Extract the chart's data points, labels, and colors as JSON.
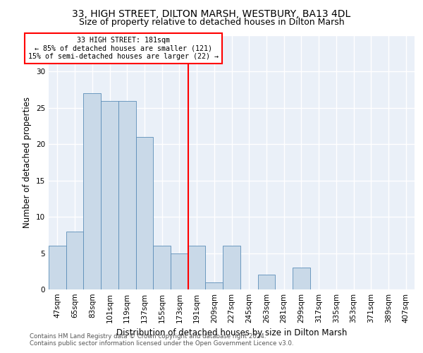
{
  "title1": "33, HIGH STREET, DILTON MARSH, WESTBURY, BA13 4DL",
  "title2": "Size of property relative to detached houses in Dilton Marsh",
  "xlabel": "Distribution of detached houses by size in Dilton Marsh",
  "ylabel": "Number of detached properties",
  "footer1": "Contains HM Land Registry data © Crown copyright and database right 2024.",
  "footer2": "Contains public sector information licensed under the Open Government Licence v3.0.",
  "bin_labels": [
    "47sqm",
    "65sqm",
    "83sqm",
    "101sqm",
    "119sqm",
    "137sqm",
    "155sqm",
    "173sqm",
    "191sqm",
    "209sqm",
    "227sqm",
    "245sqm",
    "263sqm",
    "281sqm",
    "299sqm",
    "317sqm",
    "335sqm",
    "353sqm",
    "371sqm",
    "389sqm",
    "407sqm"
  ],
  "values": [
    6,
    8,
    27,
    26,
    26,
    21,
    6,
    5,
    6,
    1,
    6,
    0,
    2,
    0,
    3,
    0,
    0,
    0,
    0,
    0,
    0
  ],
  "bar_color": "#c9d9e8",
  "bar_edge_color": "#5b8db8",
  "bar_width": 1.0,
  "reference_line_x": 7.5,
  "reference_line_label": "33 HIGH STREET: 181sqm",
  "annotation_line1": "← 85% of detached houses are smaller (121)",
  "annotation_line2": "15% of semi-detached houses are larger (22) →",
  "ylim": [
    0,
    35
  ],
  "yticks": [
    0,
    5,
    10,
    15,
    20,
    25,
    30,
    35
  ],
  "background_color": "#eaf0f8",
  "grid_color": "#ffffff",
  "title1_fontsize": 10,
  "title2_fontsize": 9,
  "xlabel_fontsize": 8.5,
  "ylabel_fontsize": 8.5,
  "tick_fontsize": 7.5,
  "footer_fontsize": 6.2
}
